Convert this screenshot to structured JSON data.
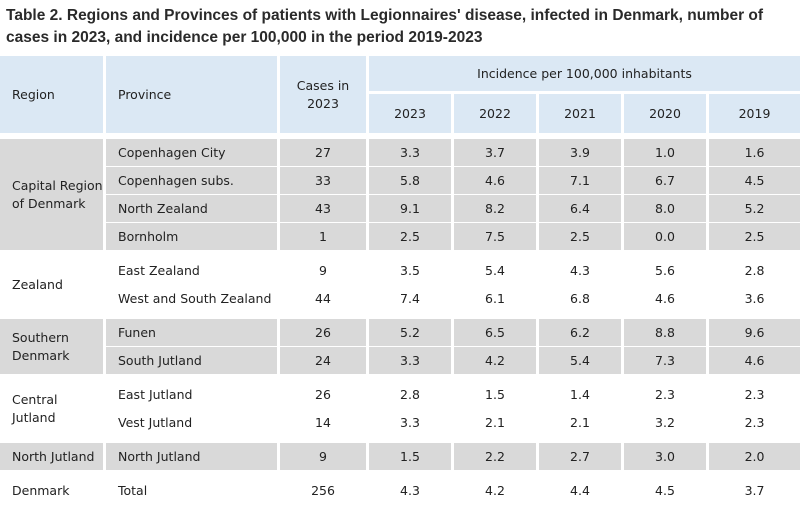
{
  "title": "Table 2. Regions and Provinces of patients with Legionnaires' disease, infected in Denmark, number of cases in 2023, and incidence per 100,000 in the period 2019-2023",
  "headers": {
    "region": "Region",
    "province": "Province",
    "cases": "Cases in 2023",
    "incidence": "Incidence per 100,000 inhabitants",
    "years": [
      "2023",
      "2022",
      "2021",
      "2020",
      "2019"
    ]
  },
  "regions": [
    {
      "name": "Capital Region of Denmark",
      "rows": [
        {
          "province": "Copenhagen City",
          "cases": "27",
          "inc": [
            "3.3",
            "3.7",
            "3.9",
            "1.0",
            "1.6"
          ]
        },
        {
          "province": "Copenhagen subs.",
          "cases": "33",
          "inc": [
            "5.8",
            "4.6",
            "7.1",
            "6.7",
            "4.5"
          ]
        },
        {
          "province": "North Zealand",
          "cases": "43",
          "inc": [
            "9.1",
            "8.2",
            "6.4",
            "8.0",
            "5.2"
          ]
        },
        {
          "province": "Bornholm",
          "cases": "1",
          "inc": [
            "2.5",
            "7.5",
            "2.5",
            "0.0",
            "2.5"
          ]
        }
      ]
    },
    {
      "name": "Zealand",
      "rows": [
        {
          "province": "East Zealand",
          "cases": "9",
          "inc": [
            "3.5",
            "5.4",
            "4.3",
            "5.6",
            "2.8"
          ]
        },
        {
          "province": "West and South Zealand",
          "cases": "44",
          "inc": [
            "7.4",
            "6.1",
            "6.8",
            "4.6",
            "3.6"
          ]
        }
      ]
    },
    {
      "name": "Southern Denmark",
      "rows": [
        {
          "province": "Funen",
          "cases": "26",
          "inc": [
            "5.2",
            "6.5",
            "6.2",
            "8.8",
            "9.6"
          ]
        },
        {
          "province": "South Jutland",
          "cases": "24",
          "inc": [
            "3.3",
            "4.2",
            "5.4",
            "7.3",
            "4.6"
          ]
        }
      ]
    },
    {
      "name": "Central Jutland",
      "rows": [
        {
          "province": "East Jutland",
          "cases": "26",
          "inc": [
            "2.8",
            "1.5",
            "1.4",
            "2.3",
            "2.3"
          ]
        },
        {
          "province": "Vest Jutland",
          "cases": "14",
          "inc": [
            "3.3",
            "2.1",
            "2.1",
            "3.2",
            "2.3"
          ]
        }
      ]
    },
    {
      "name": "North Jutland",
      "rows": [
        {
          "province": "North Jutland",
          "cases": "9",
          "inc": [
            "1.5",
            "2.2",
            "2.7",
            "3.0",
            "2.0"
          ]
        }
      ]
    },
    {
      "name": "Denmark",
      "rows": [
        {
          "province": "Total",
          "cases": "256",
          "inc": [
            "4.3",
            "4.2",
            "4.4",
            "4.5",
            "3.7"
          ]
        }
      ]
    }
  ]
}
